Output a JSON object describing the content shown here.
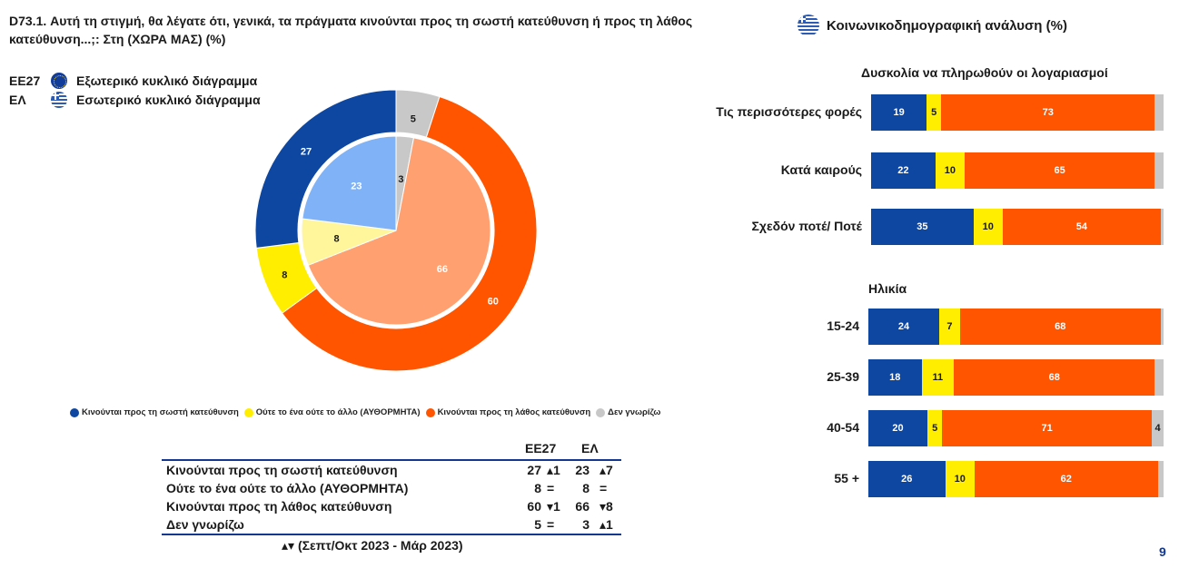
{
  "title": "D73.1. Αυτή τη στιγμή, θα λέγατε ότι, γενικά, τα πράγματα κινούνται προς τη σωστή κατεύθυνση ή προς τη λάθος κατεύθυνση...;: Στη (ΧΩΡΑ ΜΑΣ) (%)",
  "legend_top": [
    {
      "code": "ΕΕ27",
      "label": "Εξωτερικό κυκλικό διάγραμμα",
      "icon": "eu-flag-icon"
    },
    {
      "code": "ΕΛ",
      "label": "Εσωτερικό κυκλικό διάγραμμα",
      "icon": "greek-flag-icon"
    }
  ],
  "right_header": "Κοινωνικοδημογραφική ανάλυση (%)",
  "colors": {
    "right": "#0d47a1",
    "neither": "#ffee00",
    "wrong": "#ff5500",
    "dk": "#c8c8c8",
    "inner_right": "#7fb2f7",
    "inner_neither": "#fff59a",
    "inner_wrong": "#ffa070",
    "inner_dk": "#c8c8c8"
  },
  "categories": [
    "Κινούνται προς τη σωστή κατεύθυνση",
    "Ούτε το ένα ούτε το άλλο (ΑΥΘΟΡΜΗΤΑ)",
    "Κινούνται προς τη λάθος κατεύθυνση",
    "Δεν γνωρίζω"
  ],
  "table": {
    "col_eu": "ΕΕ27",
    "col_gr": "ΕΛ",
    "rows": [
      {
        "label": "Κινούνται προς τη σωστή κατεύθυνση",
        "eu": "27",
        "eu_ch": "▴1",
        "gr": "23",
        "gr_ch": "▴7"
      },
      {
        "label": "Ούτε το ένα ούτε το άλλο (ΑΥΘΟΡΜΗΤΑ)",
        "eu": "8",
        "eu_ch": "=",
        "gr": "8",
        "gr_ch": "="
      },
      {
        "label": "Κινούνται προς τη λάθος κατεύθυνση",
        "eu": "60",
        "eu_ch": "▾1",
        "gr": "66",
        "gr_ch": "▾8"
      },
      {
        "label": "Δεν γνωρίζω",
        "eu": "5",
        "eu_ch": "=",
        "gr": "3",
        "gr_ch": "▴1"
      }
    ]
  },
  "footnote": "▴▾ (Σεπτ/Οκτ 2023 - Μάρ 2023)",
  "page_number": "9",
  "chart_data": [
    {
      "type": "pie",
      "title": "",
      "categories": [
        "Κινούνται προς τη σωστή κατεύθυνση",
        "Ούτε το ένα ούτε το άλλο (ΑΥΘΟΡΜΗΤΑ)",
        "Κινούνται προς τη λάθος κατεύθυνση",
        "Δεν γνωρίζω"
      ],
      "series": [
        {
          "name": "ΕΕ27",
          "values": [
            27,
            8,
            60,
            5
          ]
        },
        {
          "name": "ΕΛ",
          "values": [
            23,
            8,
            66,
            3
          ]
        }
      ]
    },
    {
      "type": "bar",
      "stacked": true,
      "orientation": "horizontal",
      "title": "Δυσκολία να πληρωθούν οι λογαριασμοί",
      "categories": [
        "Τις περισσότερες φορές",
        "Κατά καιρούς",
        "Σχεδόν ποτέ/ Ποτέ"
      ],
      "series": [
        {
          "values": [
            19,
            22,
            35
          ]
        },
        {
          "values": [
            5,
            10,
            10
          ]
        },
        {
          "values": [
            73,
            65,
            54
          ]
        },
        {
          "values": [
            3,
            3,
            1
          ]
        }
      ]
    },
    {
      "type": "bar",
      "stacked": true,
      "orientation": "horizontal",
      "title": "Ηλικία",
      "categories": [
        "15-24",
        "25-39",
        "40-54",
        "55 +"
      ],
      "series": [
        {
          "values": [
            24,
            18,
            20,
            26
          ]
        },
        {
          "values": [
            7,
            11,
            5,
            10
          ]
        },
        {
          "values": [
            68,
            68,
            71,
            62
          ]
        },
        {
          "values": [
            1,
            3,
            4,
            2
          ]
        }
      ]
    }
  ]
}
